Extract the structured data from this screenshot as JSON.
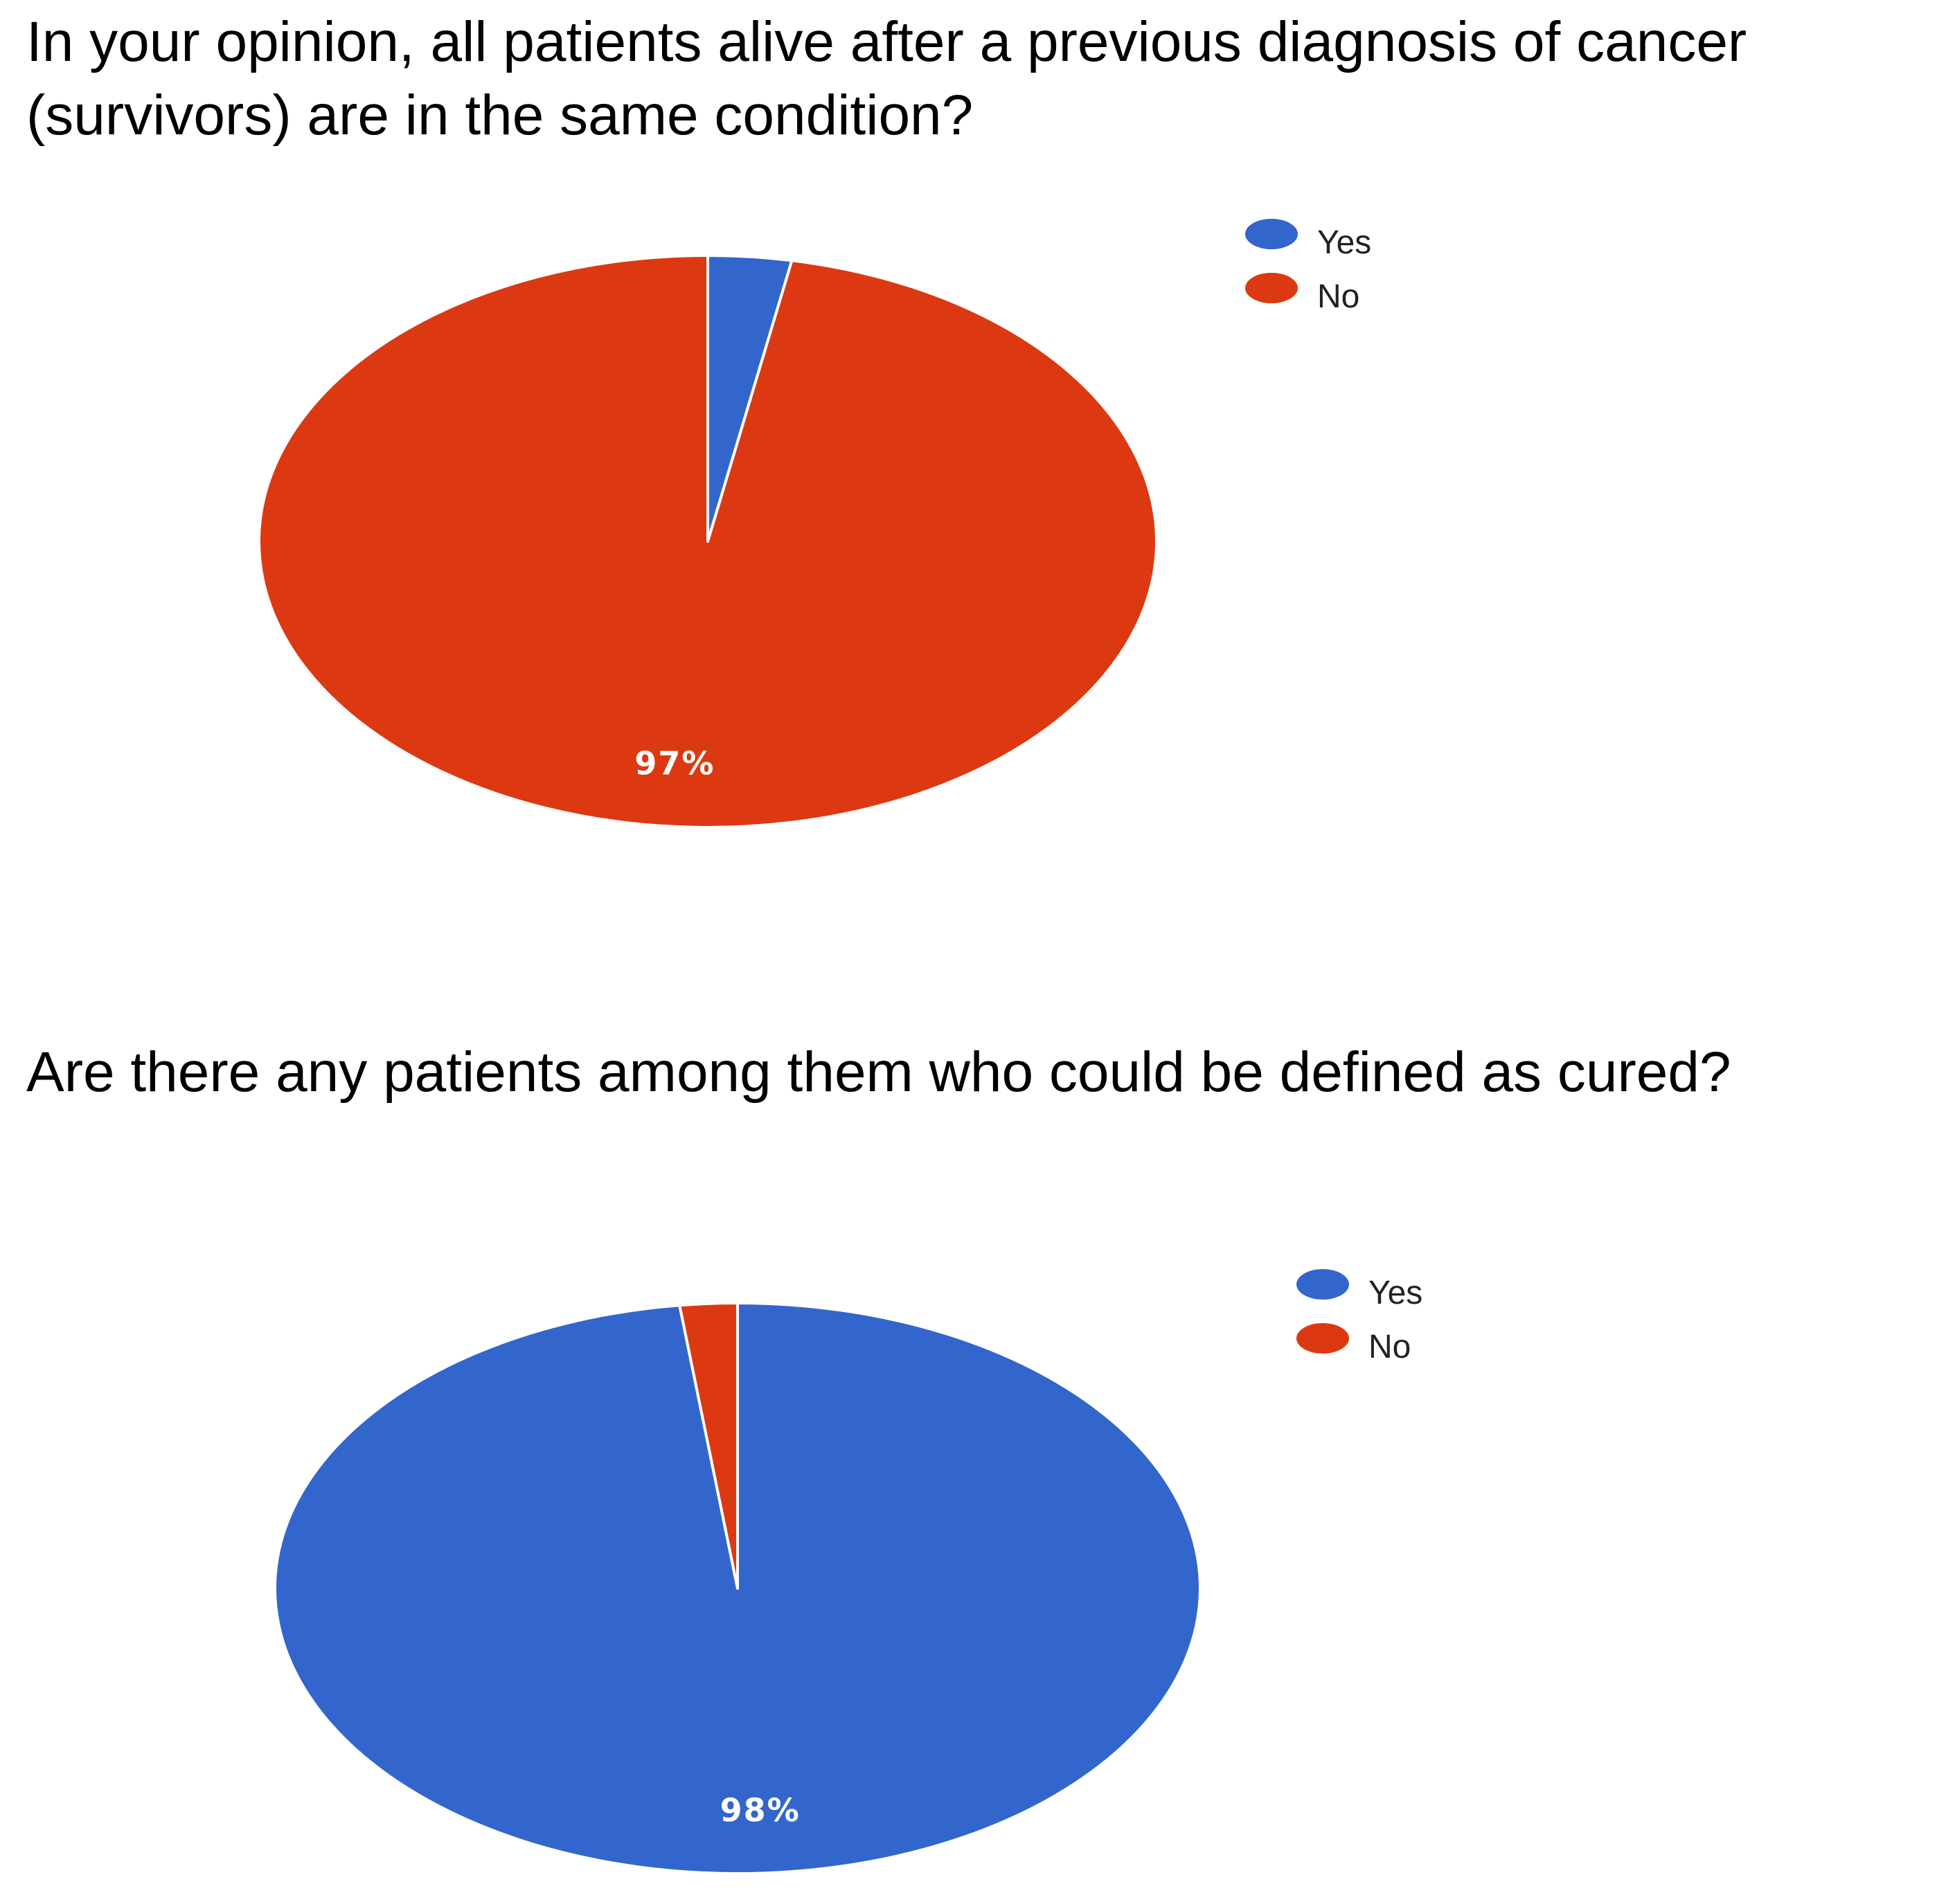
{
  "chart_data": [
    {
      "type": "pie",
      "title": "In your opinion, all patients alive after a previous diagnosis of cancer\n(survivors) are in the same condition?",
      "categories": [
        "Yes",
        "No"
      ],
      "values": [
        3,
        97
      ],
      "data_labels": [
        "",
        "97%"
      ],
      "colors": [
        "#3366cc",
        "#dc3912"
      ],
      "legend": {
        "position": "right",
        "entries": [
          "Yes",
          "No"
        ]
      },
      "start_angle_deg": 0,
      "direction": "clockwise"
    },
    {
      "type": "pie",
      "title": "Are there any patients among them who could be defined as cured?",
      "categories": [
        "Yes",
        "No"
      ],
      "values": [
        98,
        2
      ],
      "data_labels": [
        "98%",
        ""
      ],
      "colors": [
        "#3366cc",
        "#dc3912"
      ],
      "legend": {
        "position": "right",
        "entries": [
          "Yes",
          "No"
        ]
      },
      "start_angle_deg": 0,
      "direction": "clockwise"
    }
  ]
}
